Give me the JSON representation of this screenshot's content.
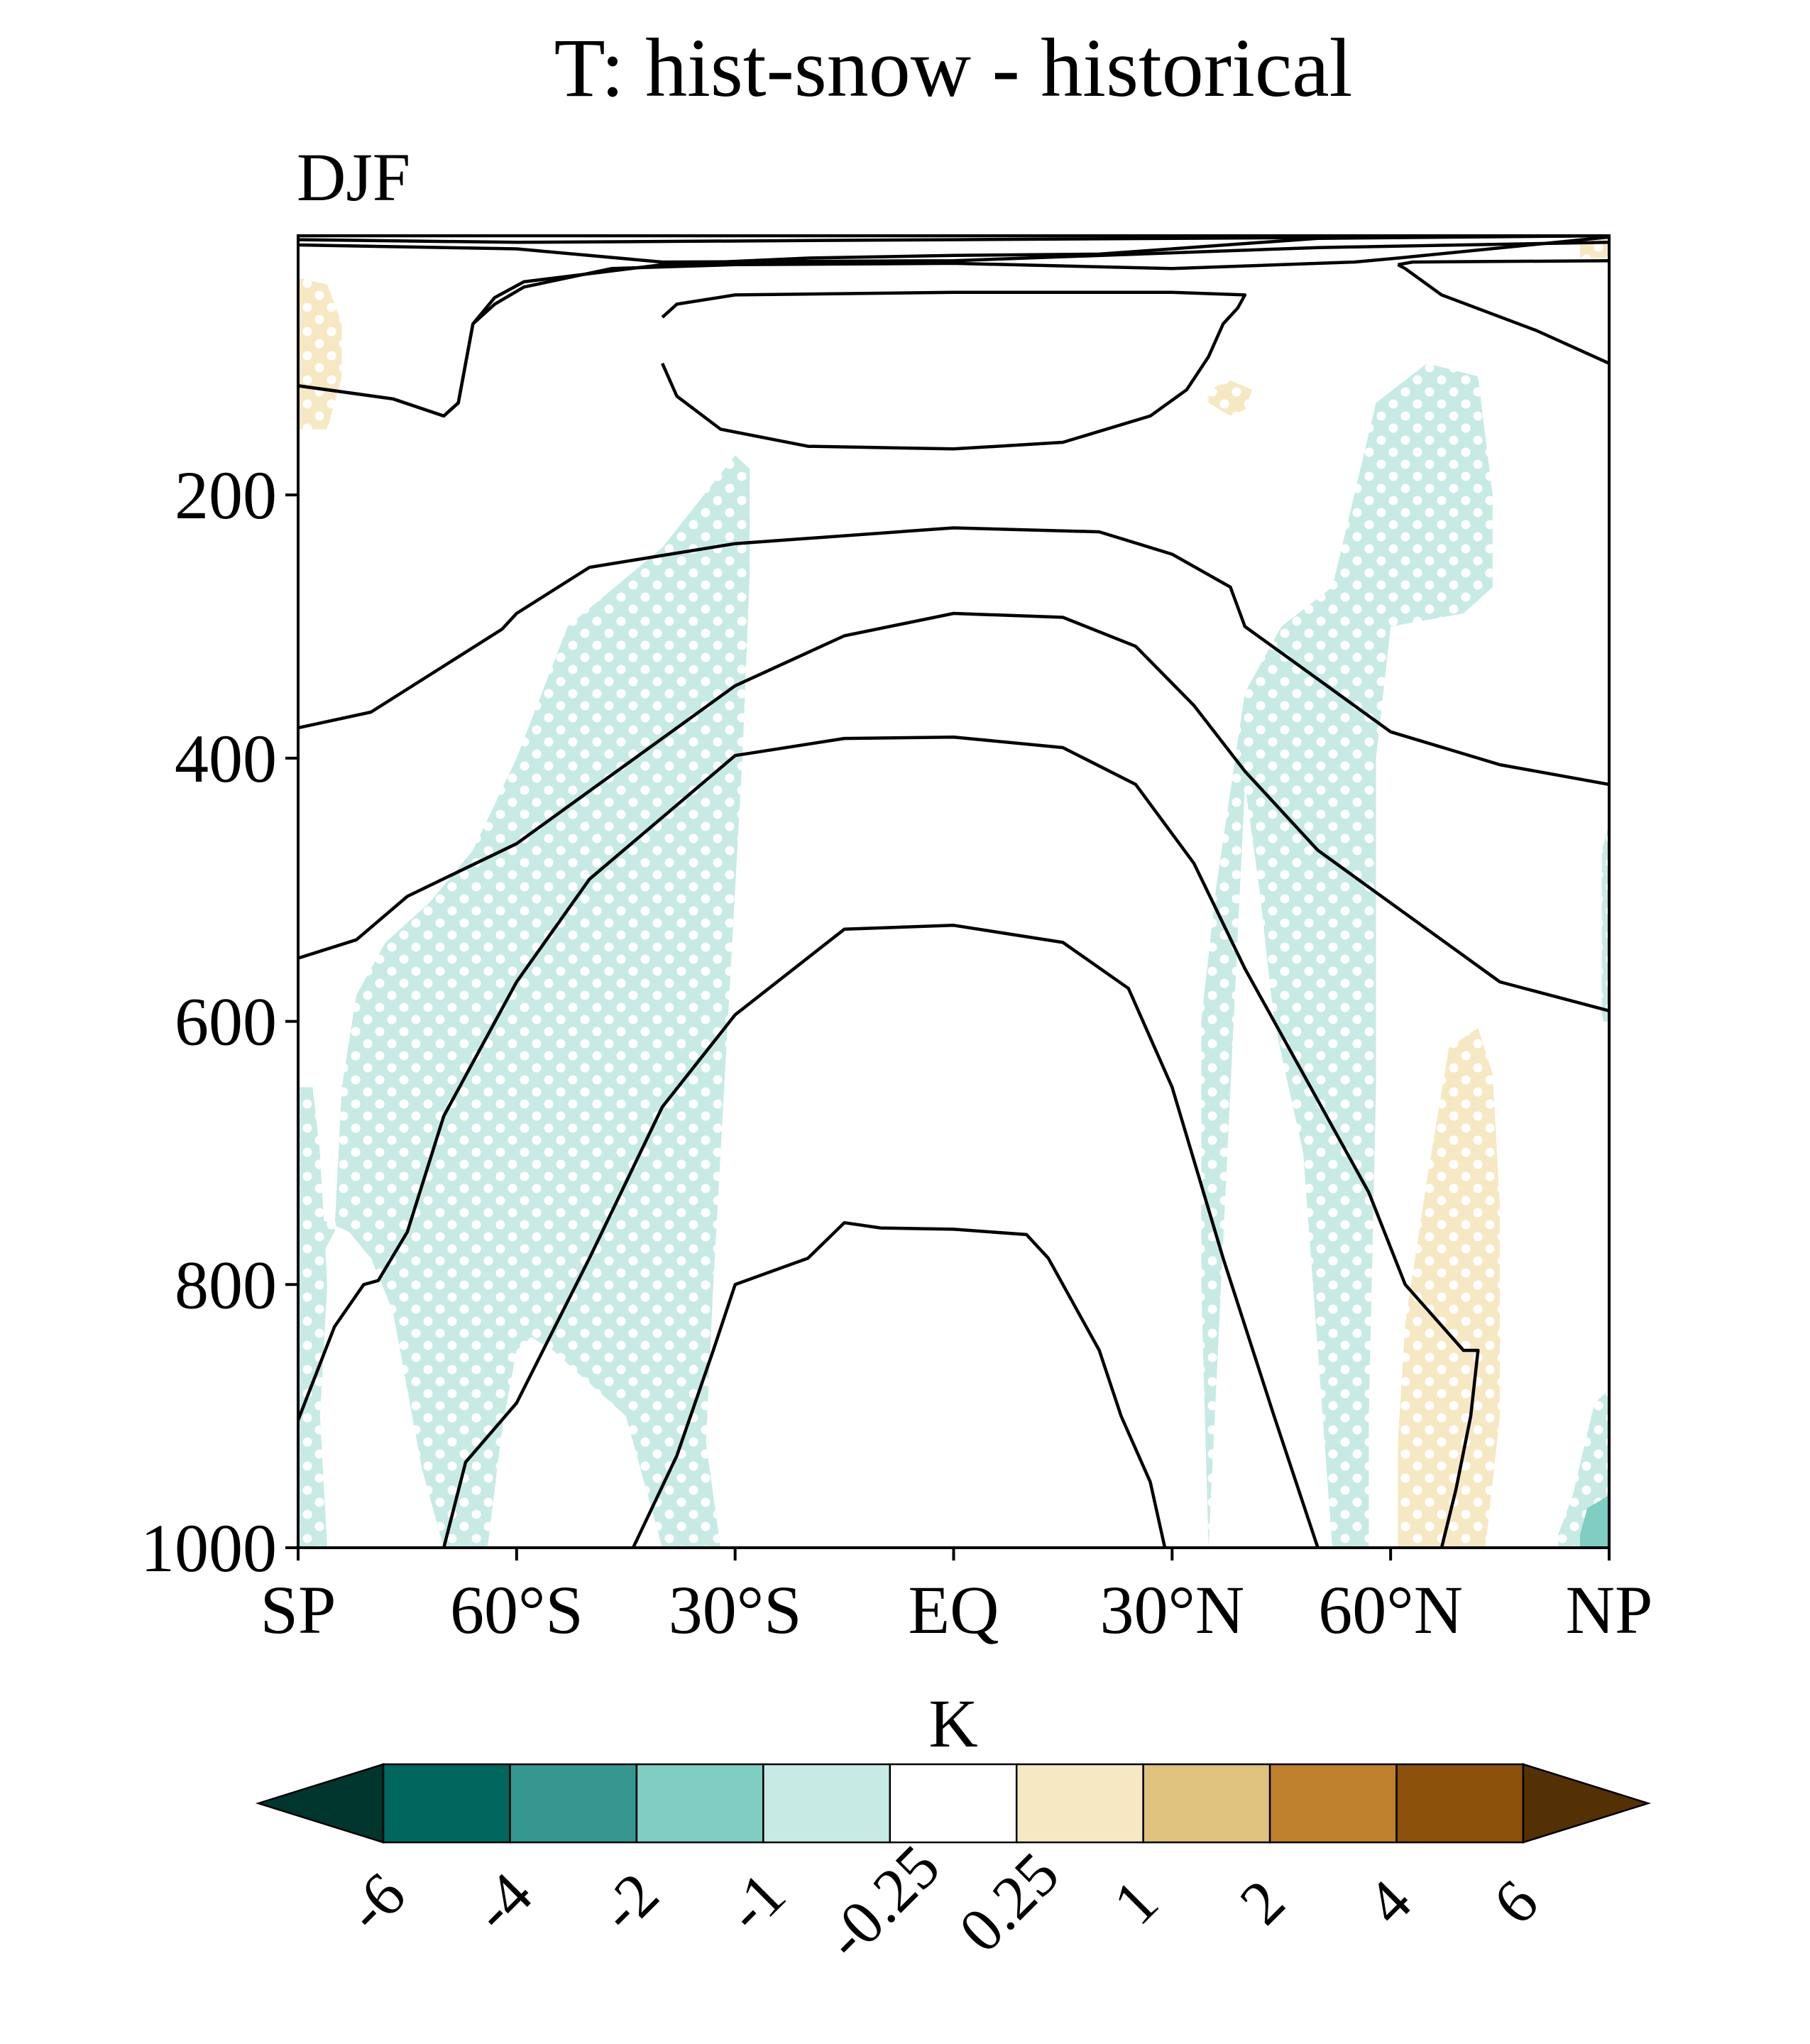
{
  "chart_data": {
    "type": "heatmap",
    "title": "T: hist-snow - historical",
    "subtitle": "DJF",
    "x_tick_labels": [
      "SP",
      "60°S",
      "30°S",
      "EQ",
      "30°N",
      "60°N",
      "NP"
    ],
    "x_ticks": [
      -90,
      -60,
      -30,
      0,
      30,
      60,
      90
    ],
    "xlim": [
      -90,
      90
    ],
    "y_tick_labels": [
      "200",
      "400",
      "600",
      "800",
      "1000"
    ],
    "y_ticks": [
      200,
      400,
      600,
      800,
      1000
    ],
    "ylim": [
      1000,
      3
    ],
    "y_inverted": true,
    "colorbar": {
      "label": "K",
      "levels": [
        "-6",
        "-4",
        "-2",
        "-1",
        "-0.25",
        "0.25",
        "1",
        "2",
        "4",
        "6"
      ],
      "colors": [
        "#00362e",
        "#01665e",
        "#35978f",
        "#80cdc1",
        "#c7eae5",
        "#ffffff",
        "#f6e8c3",
        "#dfc27d",
        "#bf812d",
        "#8c510a",
        "#543005"
      ],
      "extend": "both"
    },
    "shaded_regions": [
      {
        "color": "#c7eae5",
        "stippled": true,
        "points": [
          [
            -90,
            810
          ],
          [
            -85,
            760
          ],
          [
            -84,
            650
          ],
          [
            -82,
            580
          ],
          [
            -78,
            540
          ],
          [
            -72,
            510
          ],
          [
            -66,
            470
          ],
          [
            -60,
            400
          ],
          [
            -53,
            300
          ],
          [
            -40,
            240
          ],
          [
            -30,
            170
          ],
          [
            -28,
            180
          ],
          [
            -28,
            260
          ],
          [
            -29,
            400
          ],
          [
            -31,
            600
          ],
          [
            -33,
            800
          ],
          [
            -34,
            920
          ],
          [
            -32,
            1000
          ],
          [
            -40,
            1000
          ],
          [
            -45,
            900
          ],
          [
            -55,
            850
          ],
          [
            -58,
            840
          ],
          [
            -60,
            850
          ],
          [
            -62,
            910
          ],
          [
            -64,
            1000
          ],
          [
            -70,
            1000
          ],
          [
            -73,
            940
          ],
          [
            -75,
            880
          ],
          [
            -77,
            820
          ],
          [
            -80,
            780
          ],
          [
            -83,
            760
          ],
          [
            -87,
            750
          ],
          [
            -90,
            760
          ]
        ]
      },
      {
        "color": "#c7eae5",
        "stippled": true,
        "points": [
          [
            -90,
            650
          ],
          [
            -88,
            650
          ],
          [
            -87,
            700
          ],
          [
            -86,
            800
          ],
          [
            -87,
            900
          ],
          [
            -86,
            1000
          ],
          [
            -90,
            1000
          ]
        ]
      },
      {
        "color": "#c7eae5",
        "stippled": true,
        "points": [
          [
            35,
            1000
          ],
          [
            34,
            800
          ],
          [
            34,
            600
          ],
          [
            36,
            500
          ],
          [
            40,
            350
          ],
          [
            45,
            300
          ],
          [
            52,
            270
          ],
          [
            55,
            200
          ],
          [
            58,
            130
          ],
          [
            65,
            100
          ],
          [
            72,
            110
          ],
          [
            74,
            200
          ],
          [
            74,
            270
          ],
          [
            70,
            290
          ],
          [
            60,
            300
          ],
          [
            58,
            400
          ],
          [
            58,
            650
          ],
          [
            57,
            900
          ],
          [
            57,
            1000
          ],
          [
            52,
            1000
          ],
          [
            50,
            850
          ],
          [
            48,
            700
          ],
          [
            44,
            600
          ],
          [
            42,
            500
          ],
          [
            40,
            420
          ]
        ]
      },
      {
        "color": "#c7eae5",
        "stippled": true,
        "points": [
          [
            90,
            450
          ],
          [
            89,
            470
          ],
          [
            89,
            600
          ],
          [
            90,
            600
          ]
        ]
      },
      {
        "color": "#c7eae5",
        "stippled": true,
        "points": [
          [
            90,
            880
          ],
          [
            88,
            890
          ],
          [
            85,
            960
          ],
          [
            83,
            990
          ],
          [
            83,
            1000
          ],
          [
            90,
            1000
          ]
        ]
      },
      {
        "color": "#80cdc1",
        "stippled": false,
        "points": [
          [
            90,
            960
          ],
          [
            87,
            970
          ],
          [
            86,
            990
          ],
          [
            86,
            1000
          ],
          [
            90,
            1000
          ]
        ]
      },
      {
        "color": "#f6e8c3",
        "stippled": true,
        "points": [
          [
            -90,
            35
          ],
          [
            -86,
            40
          ],
          [
            -84,
            70
          ],
          [
            -84,
            110
          ],
          [
            -86,
            150
          ],
          [
            -90,
            150
          ]
        ]
      },
      {
        "color": "#f6e8c3",
        "stippled": true,
        "points": [
          [
            35,
            120
          ],
          [
            38,
            113
          ],
          [
            41,
            120
          ],
          [
            40,
            135
          ],
          [
            38,
            140
          ],
          [
            35,
            130
          ]
        ]
      },
      {
        "color": "#f6e8c3",
        "stippled": true,
        "points": [
          [
            61,
            1000
          ],
          [
            61,
            920
          ],
          [
            62,
            830
          ],
          [
            65,
            720
          ],
          [
            68,
            620
          ],
          [
            72,
            605
          ],
          [
            74,
            640
          ],
          [
            75,
            740
          ],
          [
            75,
            900
          ],
          [
            73,
            1000
          ]
        ]
      },
      {
        "color": "#f6e8c3",
        "stippled": true,
        "points": [
          [
            86,
            3
          ],
          [
            90,
            3
          ],
          [
            90,
            20
          ],
          [
            86,
            20
          ]
        ]
      }
    ],
    "contour_lines": [
      [
        [
          -90,
          3
        ],
        [
          90,
          3
        ]
      ],
      [
        [
          -90,
          6
        ],
        [
          -60,
          8
        ],
        [
          0,
          6
        ],
        [
          60,
          4
        ],
        [
          90,
          3
        ]
      ],
      [
        [
          -90,
          10
        ],
        [
          -60,
          13
        ],
        [
          -40,
          23
        ],
        [
          0,
          22
        ],
        [
          50,
          12
        ],
        [
          90,
          8
        ]
      ],
      [
        [
          -90,
          117
        ],
        [
          -77,
          127
        ],
        [
          -70,
          140
        ],
        [
          -68,
          130
        ],
        [
          -67,
          100
        ],
        [
          -66,
          70
        ],
        [
          -63,
          55
        ],
        [
          -59,
          42
        ],
        [
          -47,
          28
        ],
        [
          -30,
          25
        ],
        [
          0,
          24
        ],
        [
          30,
          28
        ],
        [
          55,
          23
        ],
        [
          61,
          20
        ],
        [
          90,
          4
        ]
      ],
      [
        [
          -90,
          117
        ],
        [
          -77,
          127
        ],
        [
          -70,
          140
        ],
        [
          -68,
          130
        ],
        [
          -67,
          100
        ],
        [
          -66,
          70
        ],
        [
          -63,
          50
        ],
        [
          -59,
          38
        ],
        [
          -40,
          25
        ],
        [
          -20,
          20
        ],
        [
          0,
          18
        ],
        [
          20,
          17
        ],
        [
          50,
          5
        ],
        [
          90,
          3
        ]
      ],
      [
        [
          -40,
          65
        ],
        [
          -38,
          55
        ],
        [
          -30,
          48
        ],
        [
          0,
          46
        ],
        [
          30,
          46
        ],
        [
          40,
          48
        ],
        [
          39,
          58
        ],
        [
          37,
          70
        ],
        [
          35,
          95
        ],
        [
          32,
          120
        ],
        [
          27,
          140
        ],
        [
          15,
          160
        ],
        [
          0,
          165
        ],
        [
          -20,
          163
        ],
        [
          -32,
          150
        ],
        [
          -38,
          125
        ],
        [
          -40,
          100
        ]
      ],
      [
        [
          61,
          25
        ],
        [
          62,
          28
        ],
        [
          67,
          48
        ],
        [
          80,
          75
        ],
        [
          90,
          100
        ]
      ],
      [
        [
          61,
          25
        ],
        [
          63,
          23
        ],
        [
          90,
          22
        ]
      ],
      [
        [
          -90,
          377
        ],
        [
          -80,
          365
        ],
        [
          -70,
          330
        ],
        [
          -62,
          302
        ],
        [
          -60,
          290
        ],
        [
          -50,
          255
        ],
        [
          -30,
          237
        ],
        [
          0,
          225
        ],
        [
          20,
          228
        ],
        [
          30,
          245
        ],
        [
          38,
          270
        ],
        [
          40,
          300
        ],
        [
          50,
          340
        ],
        [
          60,
          380
        ],
        [
          75,
          405
        ],
        [
          90,
          420
        ]
      ],
      [
        [
          -90,
          552
        ],
        [
          -82,
          538
        ],
        [
          -75,
          505
        ],
        [
          -60,
          465
        ],
        [
          -45,
          405
        ],
        [
          -30,
          345
        ],
        [
          -15,
          307
        ],
        [
          0,
          290
        ],
        [
          15,
          293
        ],
        [
          25,
          315
        ],
        [
          33,
          360
        ],
        [
          40,
          410
        ],
        [
          50,
          470
        ],
        [
          60,
          510
        ],
        [
          75,
          570
        ],
        [
          90,
          592
        ]
      ],
      [
        [
          -90,
          903
        ],
        [
          -85,
          832
        ],
        [
          -81,
          800
        ],
        [
          -79,
          797
        ],
        [
          -75,
          760
        ],
        [
          -70,
          672
        ],
        [
          -60,
          570
        ],
        [
          -50,
          492
        ],
        [
          -40,
          445
        ],
        [
          -30,
          398
        ],
        [
          -15,
          385
        ],
        [
          0,
          384
        ],
        [
          15,
          392
        ],
        [
          25,
          420
        ],
        [
          33,
          480
        ],
        [
          40,
          560
        ],
        [
          50,
          660
        ],
        [
          57,
          730
        ],
        [
          62,
          800
        ],
        [
          70,
          850
        ],
        [
          72,
          850
        ],
        [
          71,
          900
        ],
        [
          69,
          955
        ],
        [
          67,
          1000
        ]
      ],
      [
        [
          -70,
          1000
        ],
        [
          -67,
          935
        ],
        [
          -60,
          890
        ],
        [
          -50,
          780
        ],
        [
          -40,
          665
        ],
        [
          -30,
          595
        ],
        [
          -15,
          530
        ],
        [
          0,
          527
        ],
        [
          15,
          540
        ],
        [
          24,
          575
        ],
        [
          30,
          650
        ],
        [
          37,
          780
        ],
        [
          44,
          900
        ],
        [
          50,
          1000
        ]
      ],
      [
        [
          -44,
          1000
        ],
        [
          -38,
          930
        ],
        [
          -33,
          850
        ],
        [
          -30,
          800
        ],
        [
          -20,
          780
        ],
        [
          -15,
          753
        ],
        [
          -10,
          757
        ],
        [
          0,
          758
        ],
        [
          10,
          762
        ],
        [
          13,
          780
        ],
        [
          20,
          850
        ],
        [
          23,
          900
        ],
        [
          27,
          950
        ],
        [
          29,
          1000
        ]
      ]
    ]
  }
}
